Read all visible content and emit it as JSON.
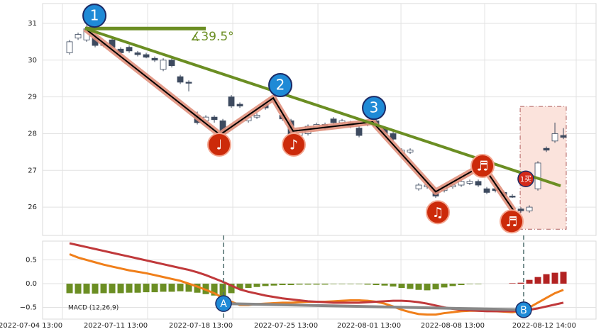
{
  "chart_data": [
    {
      "type": "candlestick",
      "x": [
        0,
        1,
        2,
        3,
        4,
        5,
        6,
        7,
        8,
        9,
        10,
        11,
        12,
        13,
        14,
        15,
        16,
        17,
        18,
        19,
        20,
        21,
        22,
        23,
        24,
        25,
        26,
        27,
        28,
        29,
        30,
        31,
        32,
        33,
        34,
        35,
        36,
        37,
        38,
        39,
        40,
        41,
        42,
        43,
        44,
        45,
        46,
        47,
        48,
        49,
        50,
        51,
        52,
        53,
        54,
        55,
        56,
        57,
        58
      ],
      "open": [
        30.2,
        30.6,
        30.55,
        30.6,
        30.45,
        30.55,
        30.3,
        30.35,
        30.2,
        30.15,
        30.05,
        29.75,
        30.0,
        29.55,
        29.4,
        28.5,
        28.35,
        28.45,
        28.35,
        29.0,
        28.8,
        28.35,
        28.45,
        28.8,
        28.95,
        28.5,
        28.35,
        27.95,
        28.0,
        28.15,
        28.25,
        28.4,
        28.3,
        28.3,
        28.15,
        28.25,
        28.35,
        28.15,
        28.0,
        27.45,
        27.5,
        26.5,
        26.55,
        26.45,
        26.45,
        26.55,
        26.6,
        26.65,
        26.7,
        26.5,
        26.5,
        26.4,
        26.3,
        25.95,
        25.9,
        26.5,
        27.6,
        27.8,
        27.95
      ],
      "high": [
        30.55,
        30.75,
        30.95,
        30.65,
        30.5,
        30.6,
        30.35,
        30.4,
        30.25,
        30.2,
        30.1,
        30.05,
        30.05,
        29.6,
        29.45,
        28.6,
        28.5,
        28.5,
        28.4,
        29.05,
        28.85,
        28.5,
        28.55,
        28.85,
        29.0,
        28.55,
        28.4,
        28.15,
        28.25,
        28.3,
        28.3,
        28.45,
        28.4,
        28.35,
        28.2,
        28.35,
        28.4,
        28.2,
        28.05,
        27.6,
        27.6,
        26.65,
        26.65,
        26.5,
        26.6,
        26.65,
        26.75,
        26.75,
        26.75,
        26.55,
        26.55,
        26.45,
        26.35,
        26.0,
        26.05,
        27.25,
        27.65,
        28.3,
        28.15
      ],
      "low": [
        30.15,
        30.55,
        30.5,
        30.35,
        30.35,
        30.3,
        30.15,
        30.2,
        30.1,
        30.05,
        29.95,
        29.7,
        29.8,
        29.35,
        29.15,
        28.25,
        28.3,
        28.3,
        27.9,
        28.7,
        28.7,
        28.3,
        28.4,
        28.65,
        28.85,
        28.35,
        27.85,
        27.9,
        27.95,
        28.1,
        28.1,
        28.25,
        28.25,
        28.15,
        27.9,
        28.2,
        28.15,
        27.95,
        27.8,
        27.4,
        27.45,
        26.45,
        26.5,
        26.25,
        26.4,
        26.5,
        26.55,
        26.6,
        26.55,
        26.35,
        26.4,
        26.25,
        26.25,
        25.85,
        25.85,
        26.45,
        27.5,
        27.75,
        27.85
      ],
      "close": [
        30.5,
        30.7,
        30.85,
        30.4,
        30.4,
        30.35,
        30.2,
        30.25,
        30.15,
        30.08,
        30.0,
        30.0,
        29.85,
        29.4,
        29.38,
        28.3,
        28.45,
        28.38,
        28.0,
        28.75,
        28.75,
        28.45,
        28.5,
        28.7,
        28.9,
        28.4,
        27.9,
        28.1,
        28.2,
        28.25,
        28.15,
        28.3,
        28.35,
        28.2,
        27.95,
        28.3,
        28.2,
        28.0,
        27.85,
        27.55,
        27.55,
        26.6,
        26.6,
        26.3,
        26.55,
        26.6,
        26.7,
        26.7,
        26.6,
        26.4,
        26.45,
        26.3,
        26.28,
        25.9,
        26.0,
        27.2,
        27.55,
        28.0,
        27.9
      ],
      "up_color": "#ffffff",
      "down_color": "#3d4a5f",
      "edge_color": "#3d4a5f",
      "xlim": [
        -3.17,
        61.83
      ],
      "ylim": [
        25.23,
        31.54
      ],
      "yticks": [
        26,
        27,
        28,
        29,
        30,
        31
      ],
      "grid": true,
      "trendline": {
        "x": [
          1.83,
          57.67
        ],
        "y": [
          30.86,
          26.58
        ],
        "color": "#6b8e23"
      },
      "baseline": {
        "x": [
          1.83,
          16.0
        ],
        "y": [
          30.86,
          30.86
        ],
        "color": "#6b8e23"
      },
      "angle_label": {
        "text": "∡39.5°",
        "x": 14.17,
        "y": 30.63
      },
      "zigzag": {
        "x": [
          1.83,
          17.67,
          23.92,
          26.25,
          35.58,
          43.0,
          48.5,
          52.17
        ],
        "y": [
          30.86,
          27.97,
          28.97,
          28.07,
          28.32,
          26.42,
          27.14,
          25.9
        ],
        "color": "#e0907c"
      },
      "badges": [
        {
          "label": "1",
          "x": 2.92,
          "y": 31.21
        },
        {
          "label": "2",
          "x": 24.75,
          "y": 29.32
        },
        {
          "label": "3",
          "x": 35.75,
          "y": 28.7
        }
      ],
      "notes": [
        {
          "label": "♩",
          "x": 17.58,
          "y": 27.7
        },
        {
          "label": "♪",
          "x": 26.33,
          "y": 27.7
        },
        {
          "label": "♫",
          "x": 43.25,
          "y": 25.86
        },
        {
          "label": "♬",
          "x": 48.5,
          "y": 27.12
        },
        {
          "label": "♬",
          "x": 51.92,
          "y": 25.61
        }
      ],
      "buy_signal": {
        "label": "1买",
        "x": 53.58,
        "y": 26.77
      },
      "box": {
        "x": [
          52.92,
          58.33
        ],
        "y": [
          25.4,
          28.74
        ]
      }
    },
    {
      "type": "macd",
      "label": "MACD (12,26,9)",
      "x": [
        0,
        1,
        2,
        3,
        4,
        5,
        6,
        7,
        8,
        9,
        10,
        11,
        12,
        13,
        14,
        15,
        16,
        17,
        18,
        19,
        20,
        21,
        22,
        23,
        24,
        25,
        26,
        27,
        28,
        29,
        30,
        31,
        32,
        33,
        34,
        35,
        36,
        37,
        38,
        39,
        40,
        41,
        42,
        43,
        44,
        45,
        46,
        47,
        48,
        49,
        50,
        51,
        52,
        53,
        54,
        55,
        56,
        57,
        58
      ],
      "histogram": {
        "values": [
          -0.2,
          -0.21,
          -0.21,
          -0.21,
          -0.2,
          -0.2,
          -0.2,
          -0.19,
          -0.19,
          -0.18,
          -0.18,
          -0.17,
          -0.17,
          -0.16,
          -0.17,
          -0.19,
          -0.22,
          -0.25,
          -0.28,
          -0.2,
          -0.12,
          -0.09,
          -0.07,
          -0.05,
          -0.04,
          -0.03,
          -0.03,
          -0.02,
          -0.02,
          -0.02,
          -0.02,
          -0.01,
          -0.01,
          -0.01,
          -0.01,
          -0.02,
          -0.03,
          -0.04,
          -0.06,
          -0.09,
          -0.11,
          -0.13,
          -0.14,
          -0.12,
          -0.08,
          -0.05,
          -0.03,
          -0.01,
          -0.01,
          0,
          0,
          0,
          0.01,
          0.02,
          0.08,
          0.14,
          0.2,
          0.23,
          0.25
        ],
        "up_color": "#b22222",
        "down_color": "#6b8e23"
      },
      "macd": {
        "color": "#c0393b",
        "values": [
          0.85,
          0.81,
          0.77,
          0.73,
          0.69,
          0.65,
          0.61,
          0.57,
          0.53,
          0.49,
          0.45,
          0.41,
          0.37,
          0.33,
          0.29,
          0.24,
          0.18,
          0.11,
          0.04,
          -0.04,
          -0.12,
          -0.17,
          -0.21,
          -0.25,
          -0.28,
          -0.31,
          -0.33,
          -0.35,
          -0.37,
          -0.38,
          -0.39,
          -0.4,
          -0.4,
          -0.4,
          -0.4,
          -0.39,
          -0.38,
          -0.37,
          -0.36,
          -0.36,
          -0.37,
          -0.39,
          -0.42,
          -0.46,
          -0.5,
          -0.53,
          -0.55,
          -0.56,
          -0.57,
          -0.58,
          -0.58,
          -0.58,
          -0.58,
          -0.57,
          -0.55,
          -0.52,
          -0.48,
          -0.44,
          -0.4
        ]
      },
      "signal": {
        "color": "#f07f1a",
        "values": [
          0.62,
          0.55,
          0.5,
          0.45,
          0.4,
          0.36,
          0.32,
          0.28,
          0.25,
          0.22,
          0.18,
          0.14,
          0.1,
          0.06,
          0.0,
          -0.06,
          -0.13,
          -0.2,
          -0.3,
          -0.38,
          -0.45,
          -0.45,
          -0.43,
          -0.42,
          -0.41,
          -0.4,
          -0.4,
          -0.39,
          -0.38,
          -0.38,
          -0.38,
          -0.37,
          -0.36,
          -0.35,
          -0.35,
          -0.36,
          -0.38,
          -0.42,
          -0.48,
          -0.55,
          -0.6,
          -0.64,
          -0.65,
          -0.65,
          -0.62,
          -0.6,
          -0.58,
          -0.57,
          -0.57,
          -0.57,
          -0.58,
          -0.59,
          -0.6,
          -0.58,
          -0.5,
          -0.4,
          -0.3,
          -0.2,
          -0.13
        ]
      },
      "divergence_color": "#888888",
      "markers": [
        {
          "label": "A",
          "x": 18.08,
          "y": -0.42
        },
        {
          "label": "B",
          "x": 53.33,
          "y": -0.55
        }
      ],
      "xlim": [
        -3.17,
        61.83
      ],
      "ylim": [
        -0.746,
        0.896
      ],
      "xticks": [
        {
          "value": -0.83,
          "label": "2022-07-04 13:00"
        },
        {
          "value": 9.17,
          "label": "2022-07-11 13:00"
        },
        {
          "value": 19.17,
          "label": "2022-07-18 13:00"
        },
        {
          "value": 29.17,
          "label": "2022-07-25 13:00"
        },
        {
          "value": 38.92,
          "label": "2022-08-01 13:00"
        },
        {
          "value": 48.75,
          "label": "2022-08-08 13:00"
        },
        {
          "value": 59.5,
          "label": "2022-08-12 14:00"
        }
      ],
      "yticks": [
        0.5,
        {
          "value": 0,
          "label": "0.0"
        },
        {
          "value": -0.5,
          "label": "−0.5"
        }
      ],
      "grid": true
    }
  ]
}
